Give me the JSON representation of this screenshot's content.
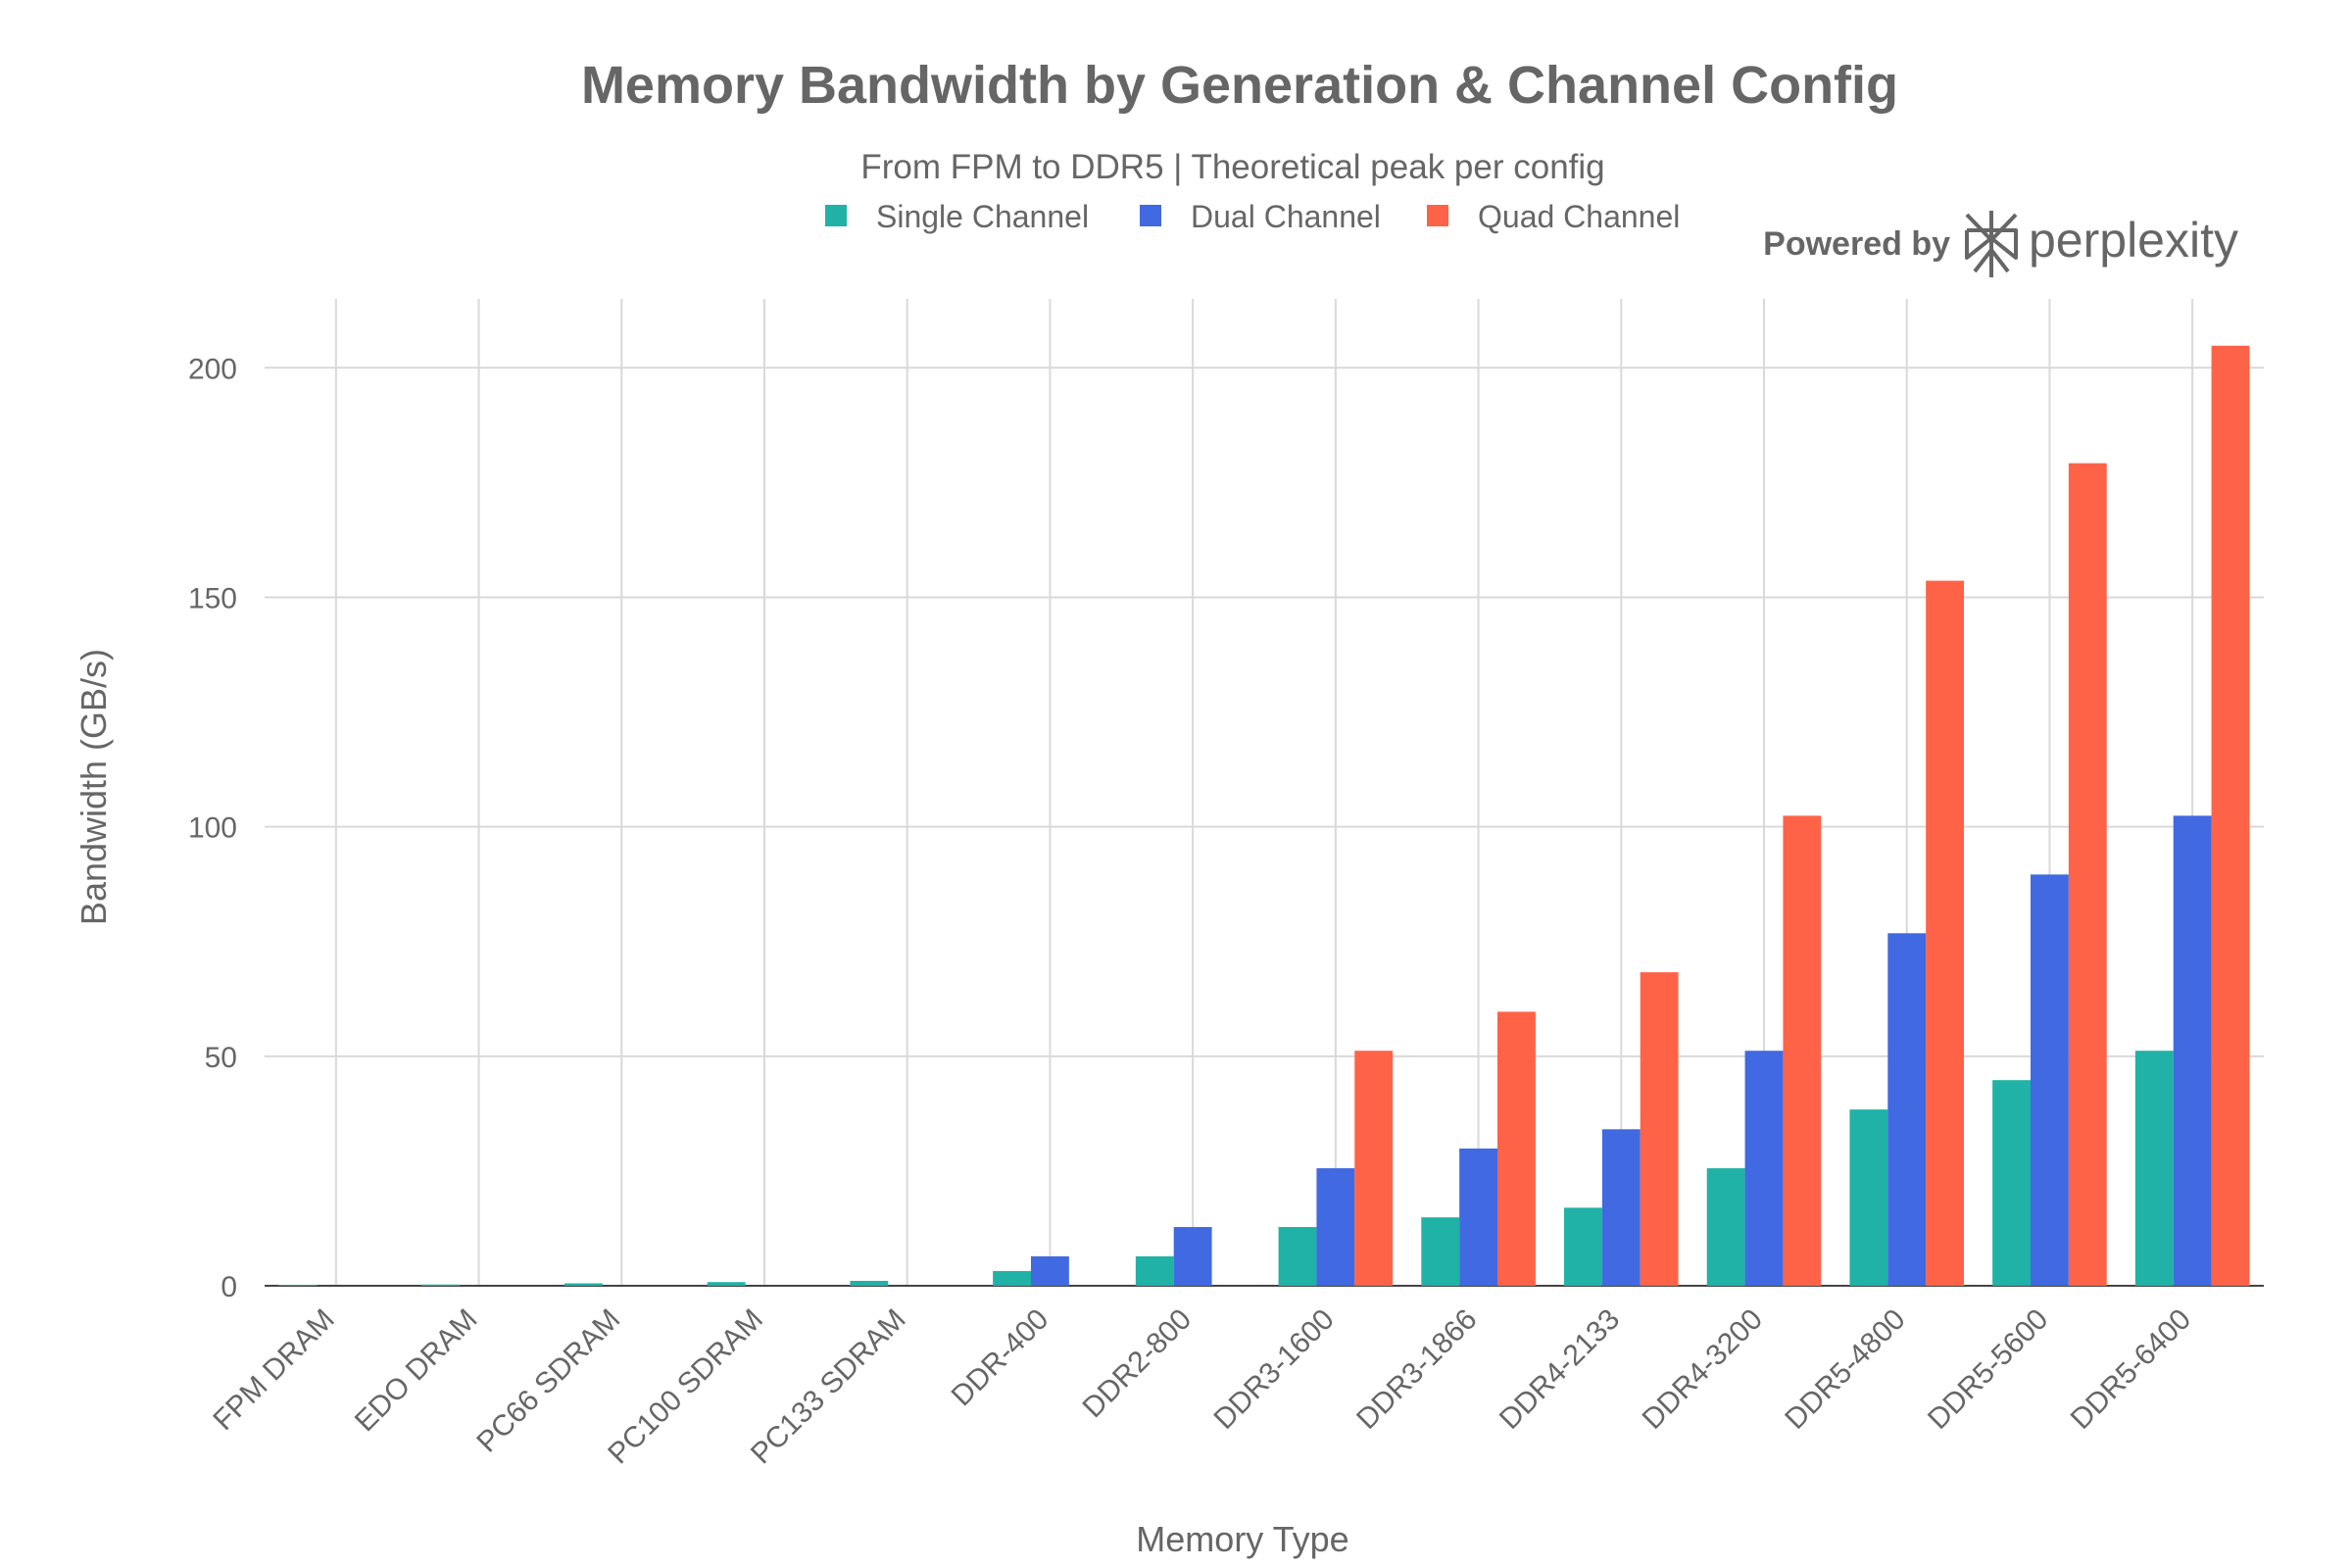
{
  "chart_data": {
    "type": "bar",
    "title": "Memory Bandwidth by Generation & Channel Config",
    "subtitle": "From FPM to DDR5 | Theoretical peak per config",
    "xlabel": "Memory Type",
    "ylabel": "Bandwidth (GB/s)",
    "ylim": [
      0,
      215
    ],
    "yticks": [
      0,
      50,
      100,
      150,
      200
    ],
    "grid": true,
    "legend_position": "top",
    "categories": [
      "FPM DRAM",
      "EDO DRAM",
      "PC66 SDRAM",
      "PC100 SDRAM",
      "PC133 SDRAM",
      "DDR-400",
      "DDR2-800",
      "DDR3-1600",
      "DDR3-1866",
      "DDR4-2133",
      "DDR4-3200",
      "DDR5-4800",
      "DDR5-5600",
      "DDR5-6400"
    ],
    "series": [
      {
        "name": "Single Channel",
        "color": "#20b2a6",
        "values": [
          0.18,
          0.27,
          0.53,
          0.8,
          1.07,
          3.2,
          6.4,
          12.8,
          14.9,
          17.0,
          25.6,
          38.4,
          44.8,
          51.2
        ]
      },
      {
        "name": "Dual Channel",
        "color": "#4169e1",
        "values": [
          0,
          0,
          0,
          0,
          0,
          6.4,
          12.8,
          25.6,
          29.9,
          34.1,
          51.2,
          76.8,
          89.6,
          102.4
        ]
      },
      {
        "name": "Quad Channel",
        "color": "#ff6347",
        "values": [
          0,
          0,
          0,
          0,
          0,
          0,
          0,
          51.2,
          59.7,
          68.3,
          102.4,
          153.6,
          179.2,
          204.8
        ]
      }
    ]
  },
  "branding": {
    "powered_by": "Powered by",
    "name": "perplexity",
    "icon": "perplexity-logo-icon"
  }
}
